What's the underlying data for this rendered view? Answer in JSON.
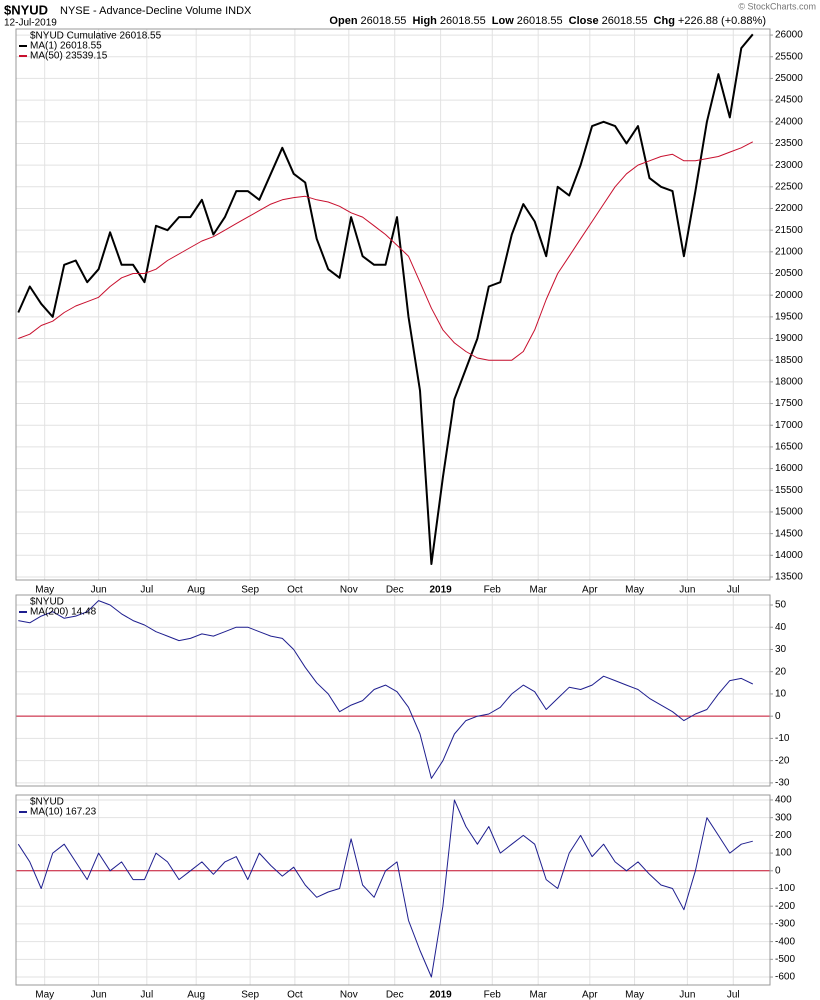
{
  "header": {
    "symbol": "$NYUD",
    "description": "NYSE - Advance-Decline Volume INDX",
    "date": "12-Jul-2019",
    "credit": "© StockCharts.com",
    "quote": [
      {
        "label": "Open",
        "value": "26018.55"
      },
      {
        "label": "High",
        "value": "26018.55"
      },
      {
        "label": "Low",
        "value": "26018.55"
      },
      {
        "label": "Close",
        "value": "26018.55"
      },
      {
        "label": "Chg",
        "value": "+226.88 (+0.88%)"
      }
    ]
  },
  "chart_data": [
    {
      "type": "line",
      "label": "$NYUD Cumulative 26018.55",
      "x_axis_labels": true,
      "grid": true,
      "xlim": [
        -0.2,
        65.5
      ],
      "xticks": [
        {
          "value": 2.3,
          "label": "May"
        },
        {
          "value": 7.0,
          "label": "Jun"
        },
        {
          "value": 11.2,
          "label": "Jul"
        },
        {
          "value": 15.5,
          "label": "Aug"
        },
        {
          "value": 20.2,
          "label": "Sep"
        },
        {
          "value": 24.1,
          "label": "Oct"
        },
        {
          "value": 28.8,
          "label": "Nov"
        },
        {
          "value": 32.8,
          "label": "Dec"
        },
        {
          "value": 36.8,
          "label": "2019"
        },
        {
          "value": 41.3,
          "label": "Feb"
        },
        {
          "value": 45.3,
          "label": "Mar"
        },
        {
          "value": 49.8,
          "label": "Apr"
        },
        {
          "value": 53.7,
          "label": "May"
        },
        {
          "value": 58.3,
          "label": "Jun"
        },
        {
          "value": 62.3,
          "label": "Jul"
        }
      ],
      "ylim": [
        13430,
        26140
      ],
      "yticks": [
        13500,
        14000,
        14500,
        15000,
        15500,
        16000,
        16500,
        17000,
        17500,
        18000,
        18500,
        19000,
        19500,
        20000,
        20500,
        21000,
        21500,
        22000,
        22500,
        23000,
        23500,
        24000,
        24500,
        25000,
        25500,
        26000
      ],
      "series": [
        {
          "name": "MA(1) 26018.55",
          "color": "#000000",
          "width": 2,
          "values": [
            19600,
            20200,
            19800,
            19500,
            20700,
            20800,
            20300,
            20600,
            21450,
            20700,
            20700,
            20300,
            21600,
            21500,
            21800,
            21800,
            22200,
            21400,
            21800,
            22400,
            22400,
            22200,
            22800,
            23400,
            22800,
            22600,
            21300,
            20600,
            20400,
            21800,
            20900,
            20700,
            20700,
            21800,
            19500,
            17800,
            13800,
            15800,
            17600,
            18300,
            19000,
            20200,
            20300,
            21400,
            22100,
            21700,
            20900,
            22500,
            22300,
            23000,
            23900,
            24000,
            23900,
            23500,
            23900,
            22700,
            22500,
            22400,
            20900,
            22400,
            24000,
            25100,
            24100,
            25700,
            26018.55
          ]
        },
        {
          "name": "MA(50) 23539.15",
          "color": "#c8102e",
          "width": 1,
          "values": [
            19000,
            19100,
            19300,
            19400,
            19600,
            19750,
            19850,
            19950,
            20200,
            20400,
            20500,
            20500,
            20600,
            20800,
            20950,
            21100,
            21250,
            21350,
            21500,
            21650,
            21800,
            21950,
            22100,
            22200,
            22250,
            22280,
            22200,
            22150,
            22050,
            21900,
            21800,
            21600,
            21400,
            21150,
            20900,
            20300,
            19700,
            19200,
            18900,
            18700,
            18550,
            18500,
            18500,
            18500,
            18700,
            19200,
            19900,
            20500,
            20900,
            21300,
            21700,
            22100,
            22500,
            22800,
            23000,
            23100,
            23200,
            23250,
            23100,
            23100,
            23150,
            23200,
            23300,
            23400,
            23539.15
          ]
        }
      ]
    },
    {
      "type": "line",
      "label": "$NYUD",
      "x_axis_labels": false,
      "grid": true,
      "hline": 0,
      "hline_color": "#c8102e",
      "xlim": [
        -0.2,
        65.5
      ],
      "xticks": [
        {
          "value": 2.3,
          "label": "May"
        },
        {
          "value": 7.0,
          "label": "Jun"
        },
        {
          "value": 11.2,
          "label": "Jul"
        },
        {
          "value": 15.5,
          "label": "Aug"
        },
        {
          "value": 20.2,
          "label": "Sep"
        },
        {
          "value": 24.1,
          "label": "Oct"
        },
        {
          "value": 28.8,
          "label": "Nov"
        },
        {
          "value": 32.8,
          "label": "Dec"
        },
        {
          "value": 36.8,
          "label": "2019"
        },
        {
          "value": 41.3,
          "label": "Feb"
        },
        {
          "value": 45.3,
          "label": "Mar"
        },
        {
          "value": 49.8,
          "label": "Apr"
        },
        {
          "value": 53.7,
          "label": "May"
        },
        {
          "value": 58.3,
          "label": "Jun"
        },
        {
          "value": 62.3,
          "label": "Jul"
        }
      ],
      "ylim": [
        -31.4,
        54.5
      ],
      "yticks": [
        -30,
        -20,
        -10,
        0,
        10,
        20,
        30,
        40,
        50
      ],
      "series": [
        {
          "name": "MA(200) 14.48",
          "color": "#1f1f8f",
          "width": 1,
          "values": [
            43,
            42,
            45,
            47,
            44,
            45,
            47,
            52,
            50,
            46,
            43,
            41,
            38,
            36,
            34,
            35,
            37,
            36,
            38,
            40,
            40,
            38,
            36,
            35,
            30,
            22,
            15,
            10,
            2,
            5,
            7,
            12,
            14,
            11,
            4,
            -8,
            -28,
            -20,
            -8,
            -2,
            0,
            1,
            4,
            10,
            14,
            11,
            3,
            8,
            13,
            12,
            14,
            18,
            16,
            14,
            12,
            8,
            5,
            2,
            -2,
            1,
            3,
            10,
            16,
            17,
            14.48
          ]
        }
      ]
    },
    {
      "type": "line",
      "label": "$NYUD",
      "x_axis_labels": true,
      "grid": true,
      "hline": 0,
      "hline_color": "#c8102e",
      "xlim": [
        -0.2,
        65.5
      ],
      "xticks": [
        {
          "value": 2.3,
          "label": "May"
        },
        {
          "value": 7.0,
          "label": "Jun"
        },
        {
          "value": 11.2,
          "label": "Jul"
        },
        {
          "value": 15.5,
          "label": "Aug"
        },
        {
          "value": 20.2,
          "label": "Sep"
        },
        {
          "value": 24.1,
          "label": "Oct"
        },
        {
          "value": 28.8,
          "label": "Nov"
        },
        {
          "value": 32.8,
          "label": "Dec"
        },
        {
          "value": 36.8,
          "label": "2019"
        },
        {
          "value": 41.3,
          "label": "Feb"
        },
        {
          "value": 45.3,
          "label": "Mar"
        },
        {
          "value": 49.8,
          "label": "Apr"
        },
        {
          "value": 53.7,
          "label": "May"
        },
        {
          "value": 58.3,
          "label": "Jun"
        },
        {
          "value": 62.3,
          "label": "Jul"
        }
      ],
      "ylim": [
        -645,
        428
      ],
      "yticks": [
        -600,
        -500,
        -400,
        -300,
        -200,
        -100,
        0,
        100,
        200,
        300,
        400
      ],
      "series": [
        {
          "name": "MA(10) 167.23",
          "color": "#1f1f8f",
          "width": 1,
          "values": [
            150,
            50,
            -100,
            100,
            150,
            50,
            -50,
            100,
            0,
            50,
            -50,
            -50,
            100,
            50,
            -50,
            0,
            50,
            -20,
            50,
            80,
            -50,
            100,
            30,
            -30,
            20,
            -80,
            -150,
            -120,
            -100,
            180,
            -80,
            -150,
            0,
            50,
            -280,
            -450,
            -600,
            -200,
            400,
            250,
            150,
            250,
            100,
            150,
            200,
            150,
            -50,
            -100,
            100,
            200,
            80,
            150,
            50,
            0,
            50,
            -20,
            -80,
            -100,
            -220,
            0,
            300,
            200,
            100,
            150,
            167.23
          ]
        }
      ]
    }
  ]
}
